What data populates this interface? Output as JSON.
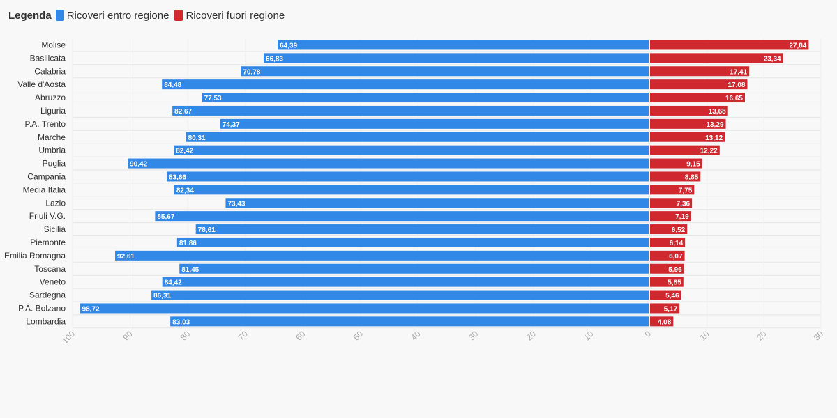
{
  "legend": {
    "title": "Legenda",
    "items": [
      {
        "label": "Ricoveri entro regione",
        "color": "#3288e6"
      },
      {
        "label": "Ricoveri fuori regione",
        "color": "#d0282f"
      }
    ]
  },
  "chart_data": {
    "type": "bar",
    "orientation": "horizontal-diverging",
    "categories": [
      "Molise",
      "Basilicata",
      "Calabria",
      "Valle d'Aosta",
      "Abruzzo",
      "Liguria",
      "P.A. Trento",
      "Marche",
      "Umbria",
      "Puglia",
      "Campania",
      "Media Italia",
      "Lazio",
      "Friuli V.G.",
      "Sicilia",
      "Piemonte",
      "Emilia Romagna",
      "Toscana",
      "Veneto",
      "Sardegna",
      "P.A. Bolzano",
      "Lombardia"
    ],
    "series": [
      {
        "name": "Ricoveri entro regione",
        "color": "#3288e6",
        "side": "left",
        "values": [
          64.39,
          66.83,
          70.78,
          84.48,
          77.53,
          82.67,
          74.37,
          80.31,
          82.42,
          90.42,
          83.66,
          82.34,
          73.43,
          85.67,
          78.61,
          81.86,
          92.61,
          81.45,
          84.42,
          86.31,
          98.72,
          83.03
        ],
        "labels": [
          "64,39",
          "66,83",
          "70,78",
          "84,48",
          "77,53",
          "82,67",
          "74,37",
          "80,31",
          "82,42",
          "90,42",
          "83,66",
          "82,34",
          "73,43",
          "85,67",
          "78,61",
          "81,86",
          "92,61",
          "81,45",
          "84,42",
          "86,31",
          "98,72",
          "83,03"
        ]
      },
      {
        "name": "Ricoveri fuori regione",
        "color": "#d0282f",
        "side": "right",
        "values": [
          27.84,
          23.34,
          17.41,
          17.08,
          16.65,
          13.68,
          13.29,
          13.12,
          12.22,
          9.15,
          8.85,
          7.75,
          7.36,
          7.19,
          6.52,
          6.14,
          6.07,
          5.96,
          5.85,
          5.46,
          5.17,
          4.08
        ],
        "labels": [
          "27,84",
          "23,34",
          "17,41",
          "17,08",
          "16,65",
          "13,68",
          "13,29",
          "13,12",
          "12,22",
          "9,15",
          "8,85",
          "7,75",
          "7,36",
          "7,19",
          "6,52",
          "6,14",
          "6,07",
          "5,96",
          "5,85",
          "5,46",
          "5,17",
          "4,08"
        ]
      }
    ],
    "left_axis": {
      "range": [
        100,
        0
      ],
      "ticks": [
        "100",
        "90",
        "80",
        "70",
        "60",
        "50",
        "40",
        "30",
        "20",
        "10",
        "0"
      ]
    },
    "right_axis": {
      "range": [
        0,
        30
      ],
      "ticks": [
        "0",
        "10",
        "20",
        "30"
      ]
    },
    "grid": "horizontal"
  }
}
